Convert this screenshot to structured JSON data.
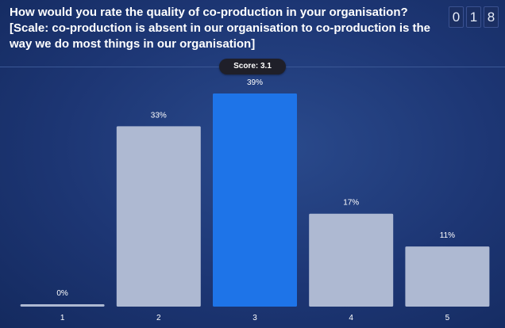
{
  "question": "How would you rate the quality of co-production in your organisation? [Scale: co-production is absent in our organisation to co-production is the way we do most things in our organisation]",
  "response_count_digits": [
    "0",
    "1",
    "8"
  ],
  "score_label": "Score: 3.1",
  "colors": {
    "bar_default": "#aeb9d2",
    "bar_highlight": "#1e74e8"
  },
  "chart_data": {
    "type": "bar",
    "categories": [
      "1",
      "2",
      "3",
      "4",
      "5"
    ],
    "values": [
      0,
      33,
      39,
      17,
      11
    ],
    "value_labels": [
      "0%",
      "33%",
      "39%",
      "17%",
      "11%"
    ],
    "highlight_index": 2,
    "ylim": [
      0,
      39
    ]
  }
}
